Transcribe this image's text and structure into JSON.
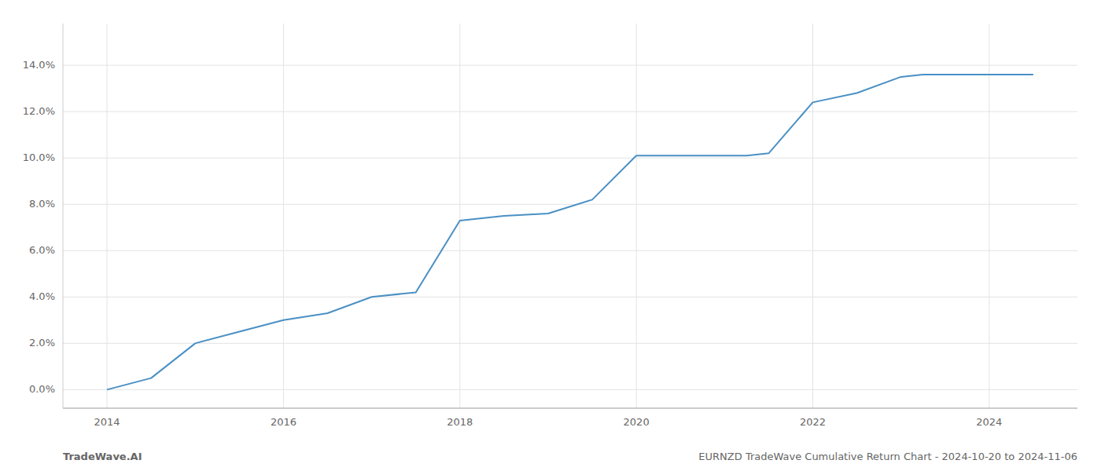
{
  "chart_data": {
    "type": "line",
    "x": [
      2014.0,
      2014.5,
      2015.0,
      2015.5,
      2016.0,
      2016.5,
      2017.0,
      2017.5,
      2018.0,
      2018.25,
      2018.5,
      2019.0,
      2019.5,
      2020.0,
      2020.25,
      2020.5,
      2021.0,
      2021.25,
      2021.5,
      2022.0,
      2022.5,
      2023.0,
      2023.25,
      2023.5,
      2024.0,
      2024.5
    ],
    "values": [
      0.0,
      0.005,
      0.02,
      0.025,
      0.03,
      0.033,
      0.04,
      0.042,
      0.073,
      0.074,
      0.075,
      0.076,
      0.082,
      0.101,
      0.101,
      0.101,
      0.101,
      0.101,
      0.102,
      0.124,
      0.128,
      0.135,
      0.136,
      0.136,
      0.136,
      0.136
    ],
    "color": "#4a90c4",
    "xlim": [
      2013.5,
      2025.0
    ],
    "ylim": [
      -0.008,
      0.158
    ],
    "xticks": [
      2014,
      2016,
      2018,
      2020,
      2022,
      2024
    ],
    "yticks": [
      {
        "value": 0.0,
        "label": "0.0%"
      },
      {
        "value": 0.02,
        "label": "2.0%"
      },
      {
        "value": 0.04,
        "label": "4.0%"
      },
      {
        "value": 0.06,
        "label": "6.0%"
      },
      {
        "value": 0.08,
        "label": "8.0%"
      },
      {
        "value": 0.1,
        "label": "10.0%"
      },
      {
        "value": 0.12,
        "label": "12.0%"
      },
      {
        "value": 0.14,
        "label": "14.0%"
      }
    ],
    "grid": true,
    "annotations": [
      "TradeWave.AI",
      "EURNZD TradeWave Cumulative Return Chart - 2024-10-20 to 2024-11-06"
    ]
  }
}
